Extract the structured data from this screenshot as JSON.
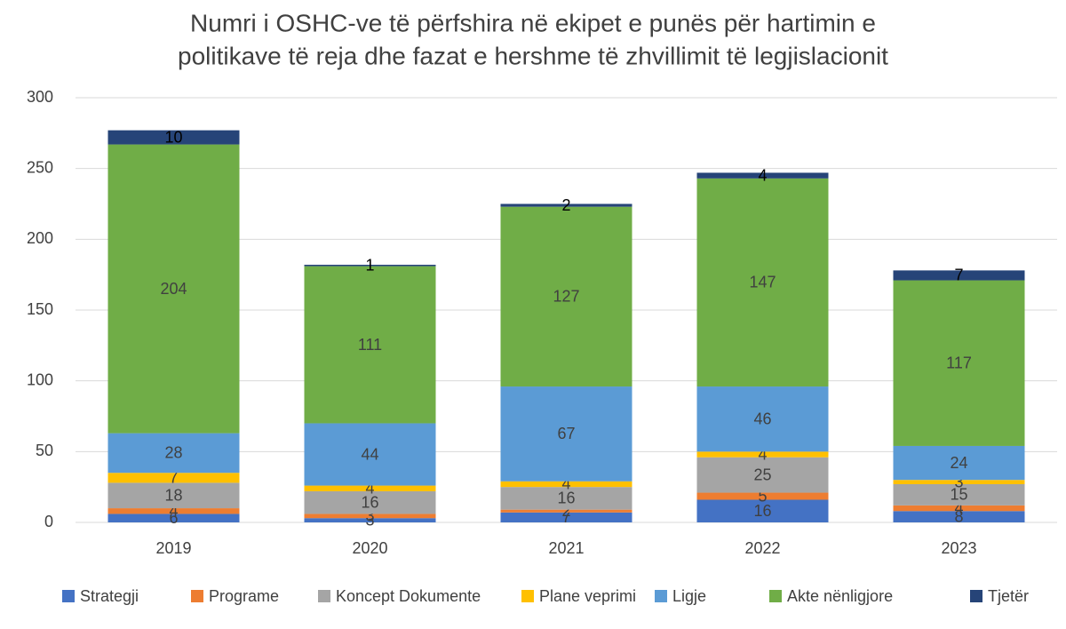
{
  "chart_data": {
    "type": "stacked_bar",
    "title": [
      "Numri i OSHC-ve të përfshira në ekipet e punës për hartimin e",
      "politikave të reja dhe fazat e hershme të zhvillimit të legjislacionit"
    ],
    "categories": [
      "2019",
      "2020",
      "2021",
      "2022",
      "2023"
    ],
    "series": [
      {
        "name": "Strategji",
        "color": "#4472c4",
        "values": [
          6,
          3,
          7,
          16,
          8
        ]
      },
      {
        "name": "Programe",
        "color": "#ed7d31",
        "values": [
          4,
          3,
          2,
          5,
          4
        ]
      },
      {
        "name": "Koncept Dokumente",
        "color": "#a5a5a5",
        "values": [
          18,
          16,
          16,
          25,
          15
        ]
      },
      {
        "name": "Plane veprimi",
        "color": "#ffc000",
        "values": [
          7,
          4,
          4,
          4,
          3
        ]
      },
      {
        "name": "Ligje",
        "color": "#5b9bd5",
        "values": [
          28,
          44,
          67,
          46,
          24
        ]
      },
      {
        "name": "Akte nënligjore",
        "color": "#70ad47",
        "values": [
          204,
          111,
          127,
          147,
          117
        ]
      },
      {
        "name": "Tjetër",
        "color": "#264478",
        "values": [
          10,
          1,
          2,
          4,
          7
        ]
      }
    ],
    "ylim": [
      0,
      300
    ],
    "yticks": [
      0,
      50,
      100,
      150,
      200,
      250,
      300
    ],
    "grid": true,
    "legend": "bottom"
  }
}
